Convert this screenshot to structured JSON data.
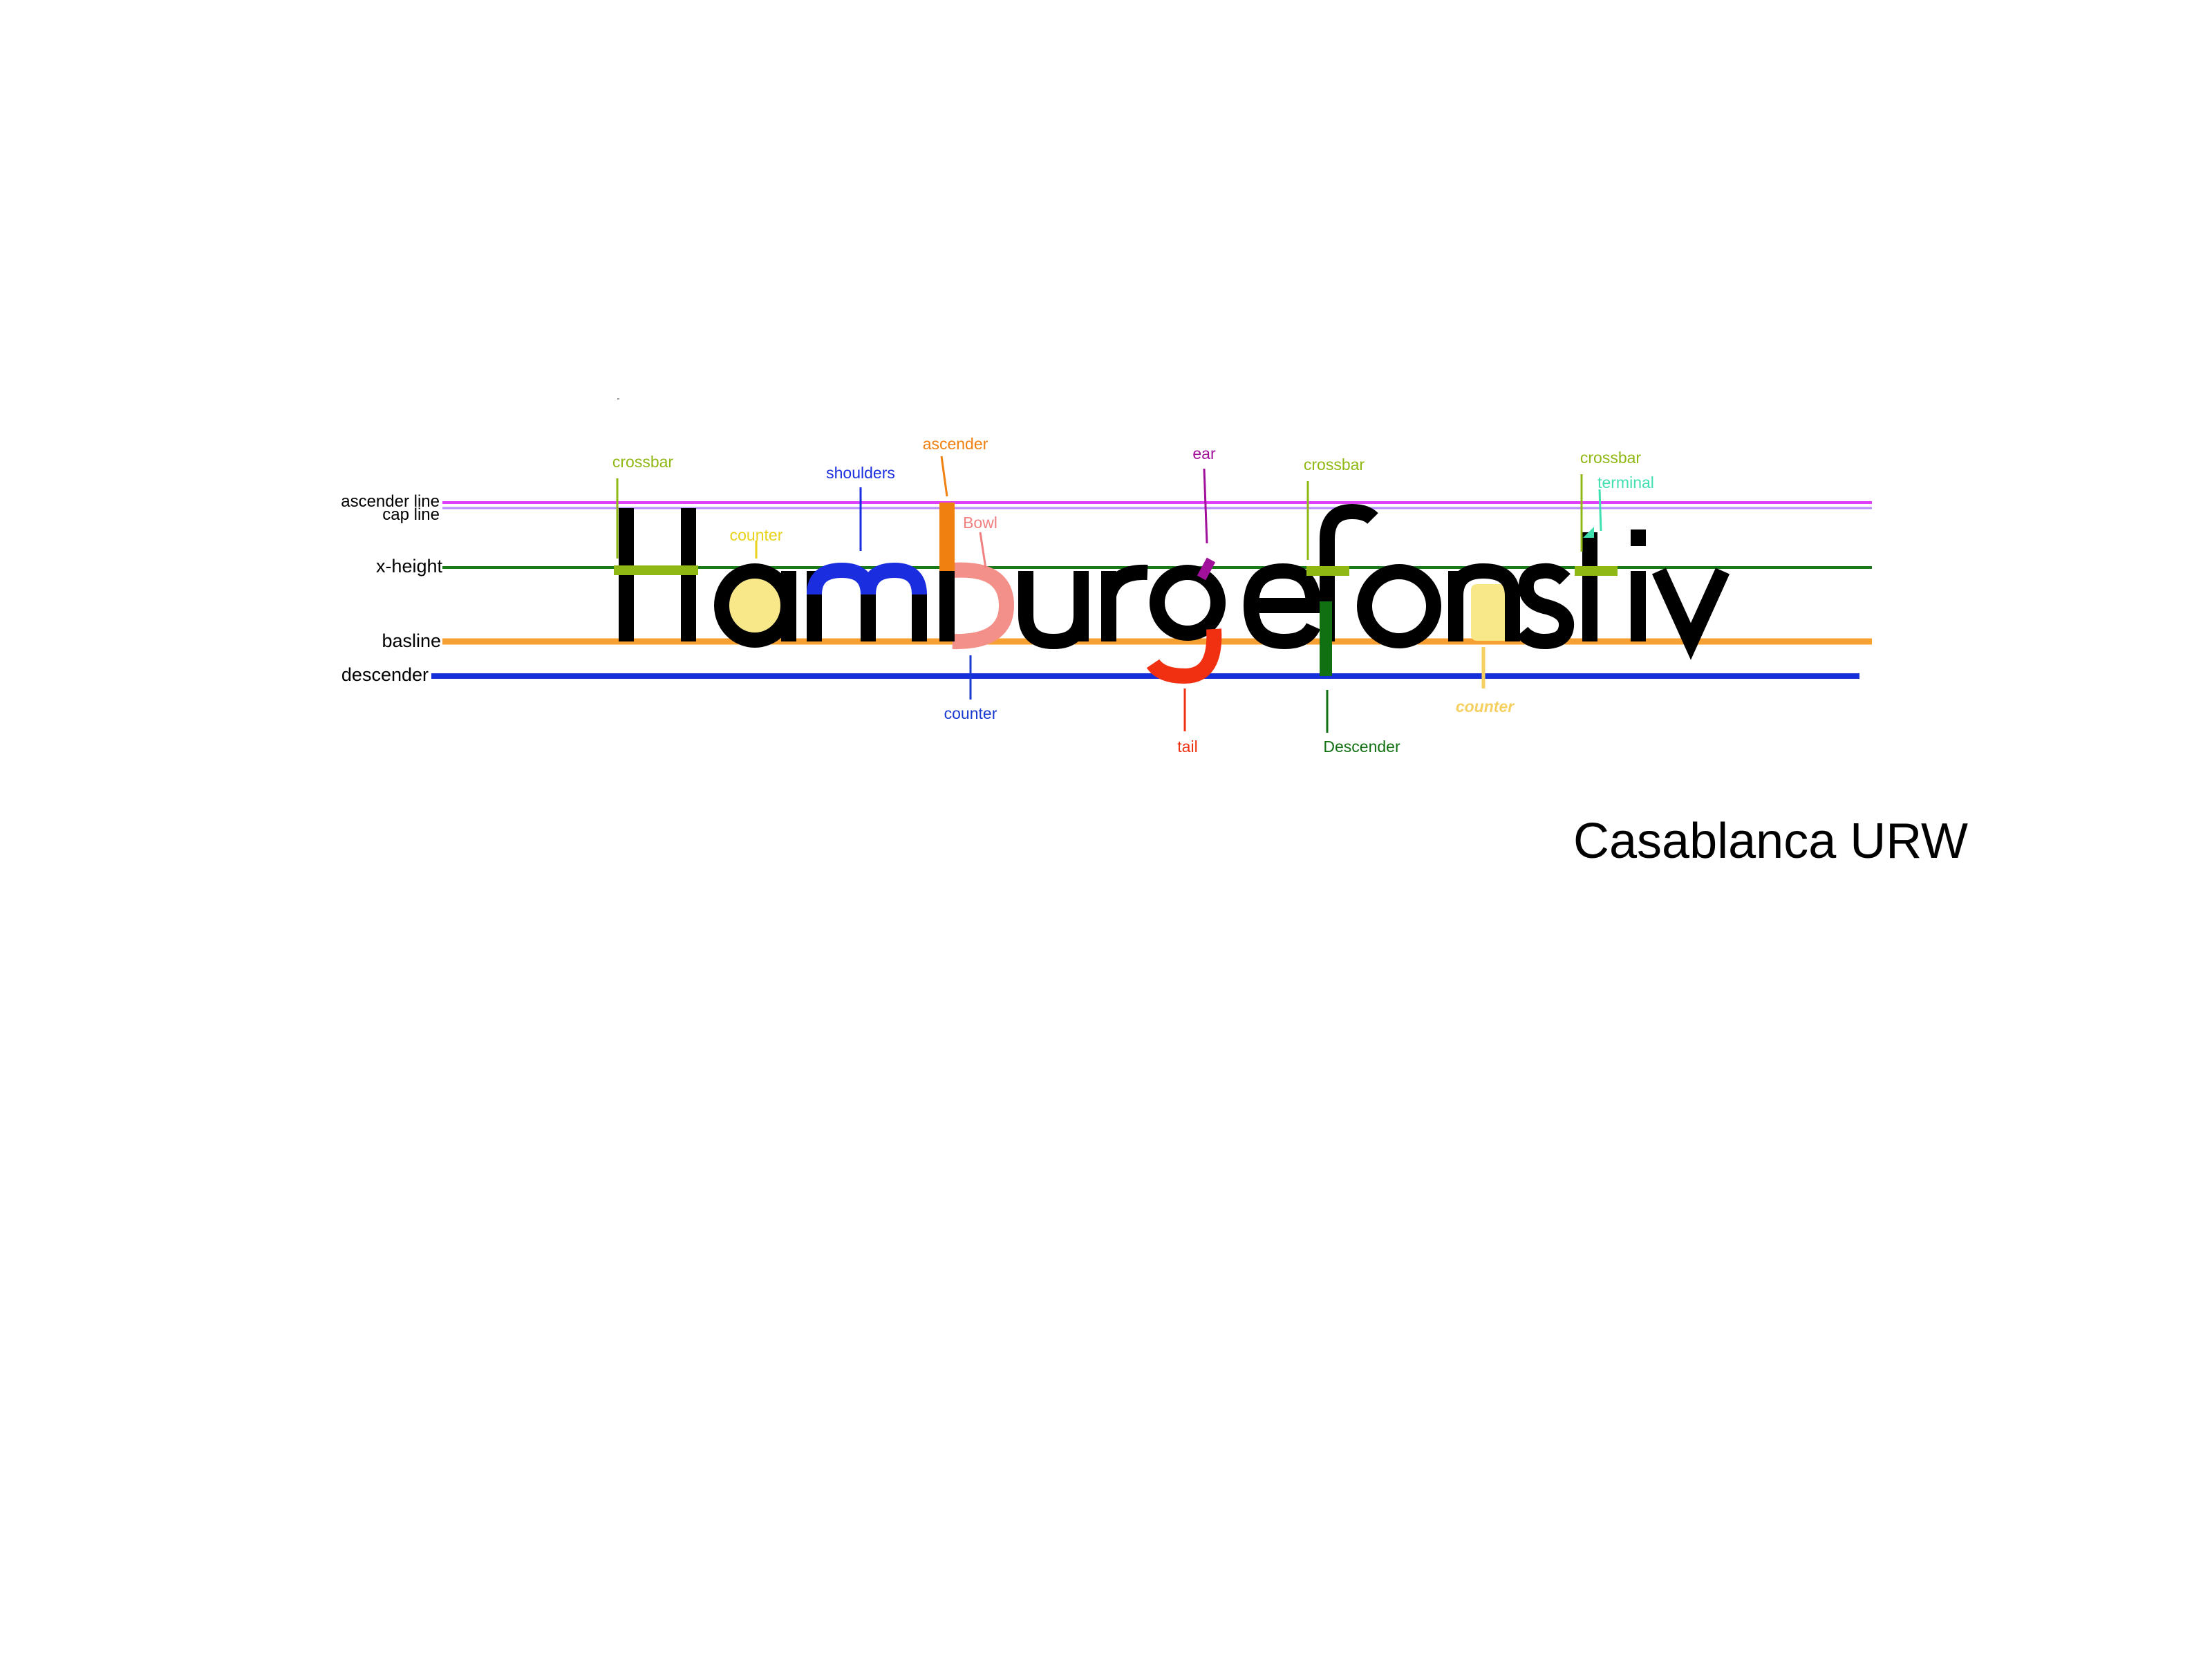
{
  "word": "Hamburgefonstiv",
  "font_name": "Casablanca URW",
  "guide_lines": [
    {
      "id": "ascender",
      "label": "ascender line",
      "color": "#e040fb"
    },
    {
      "id": "cap",
      "label": "cap line",
      "color": "#b48cff"
    },
    {
      "id": "xheight",
      "label": "x-height",
      "color": "#1a7a1a"
    },
    {
      "id": "baseline",
      "label": "basline",
      "color": "#f5a030"
    },
    {
      "id": "descender",
      "label": "descender",
      "color": "#1530d8"
    }
  ],
  "anatomy_labels": [
    {
      "id": "crossbar-h",
      "text": "crossbar",
      "color": "#8fb814"
    },
    {
      "id": "counter-a",
      "text": "counter",
      "color": "#e8d21a"
    },
    {
      "id": "shoulders",
      "text": "shoulders",
      "color": "#1a2ee0"
    },
    {
      "id": "ascender-b",
      "text": "ascender",
      "color": "#f08010"
    },
    {
      "id": "bowl",
      "text": "Bowl",
      "color": "#f08080"
    },
    {
      "id": "counter-b",
      "text": "counter",
      "color": "#1a3ad0"
    },
    {
      "id": "ear",
      "text": "ear",
      "color": "#a0109a"
    },
    {
      "id": "tail",
      "text": "tail",
      "color": "#f03010"
    },
    {
      "id": "crossbar-f",
      "text": "crossbar",
      "color": "#8fb814"
    },
    {
      "id": "descender-f",
      "text": "Descender",
      "color": "#117011"
    },
    {
      "id": "counter-n",
      "text": "counter",
      "color": "#f5d060"
    },
    {
      "id": "crossbar-t",
      "text": "crossbar",
      "color": "#8fb814"
    },
    {
      "id": "terminal",
      "text": "terminal",
      "color": "#40e0b0"
    }
  ]
}
